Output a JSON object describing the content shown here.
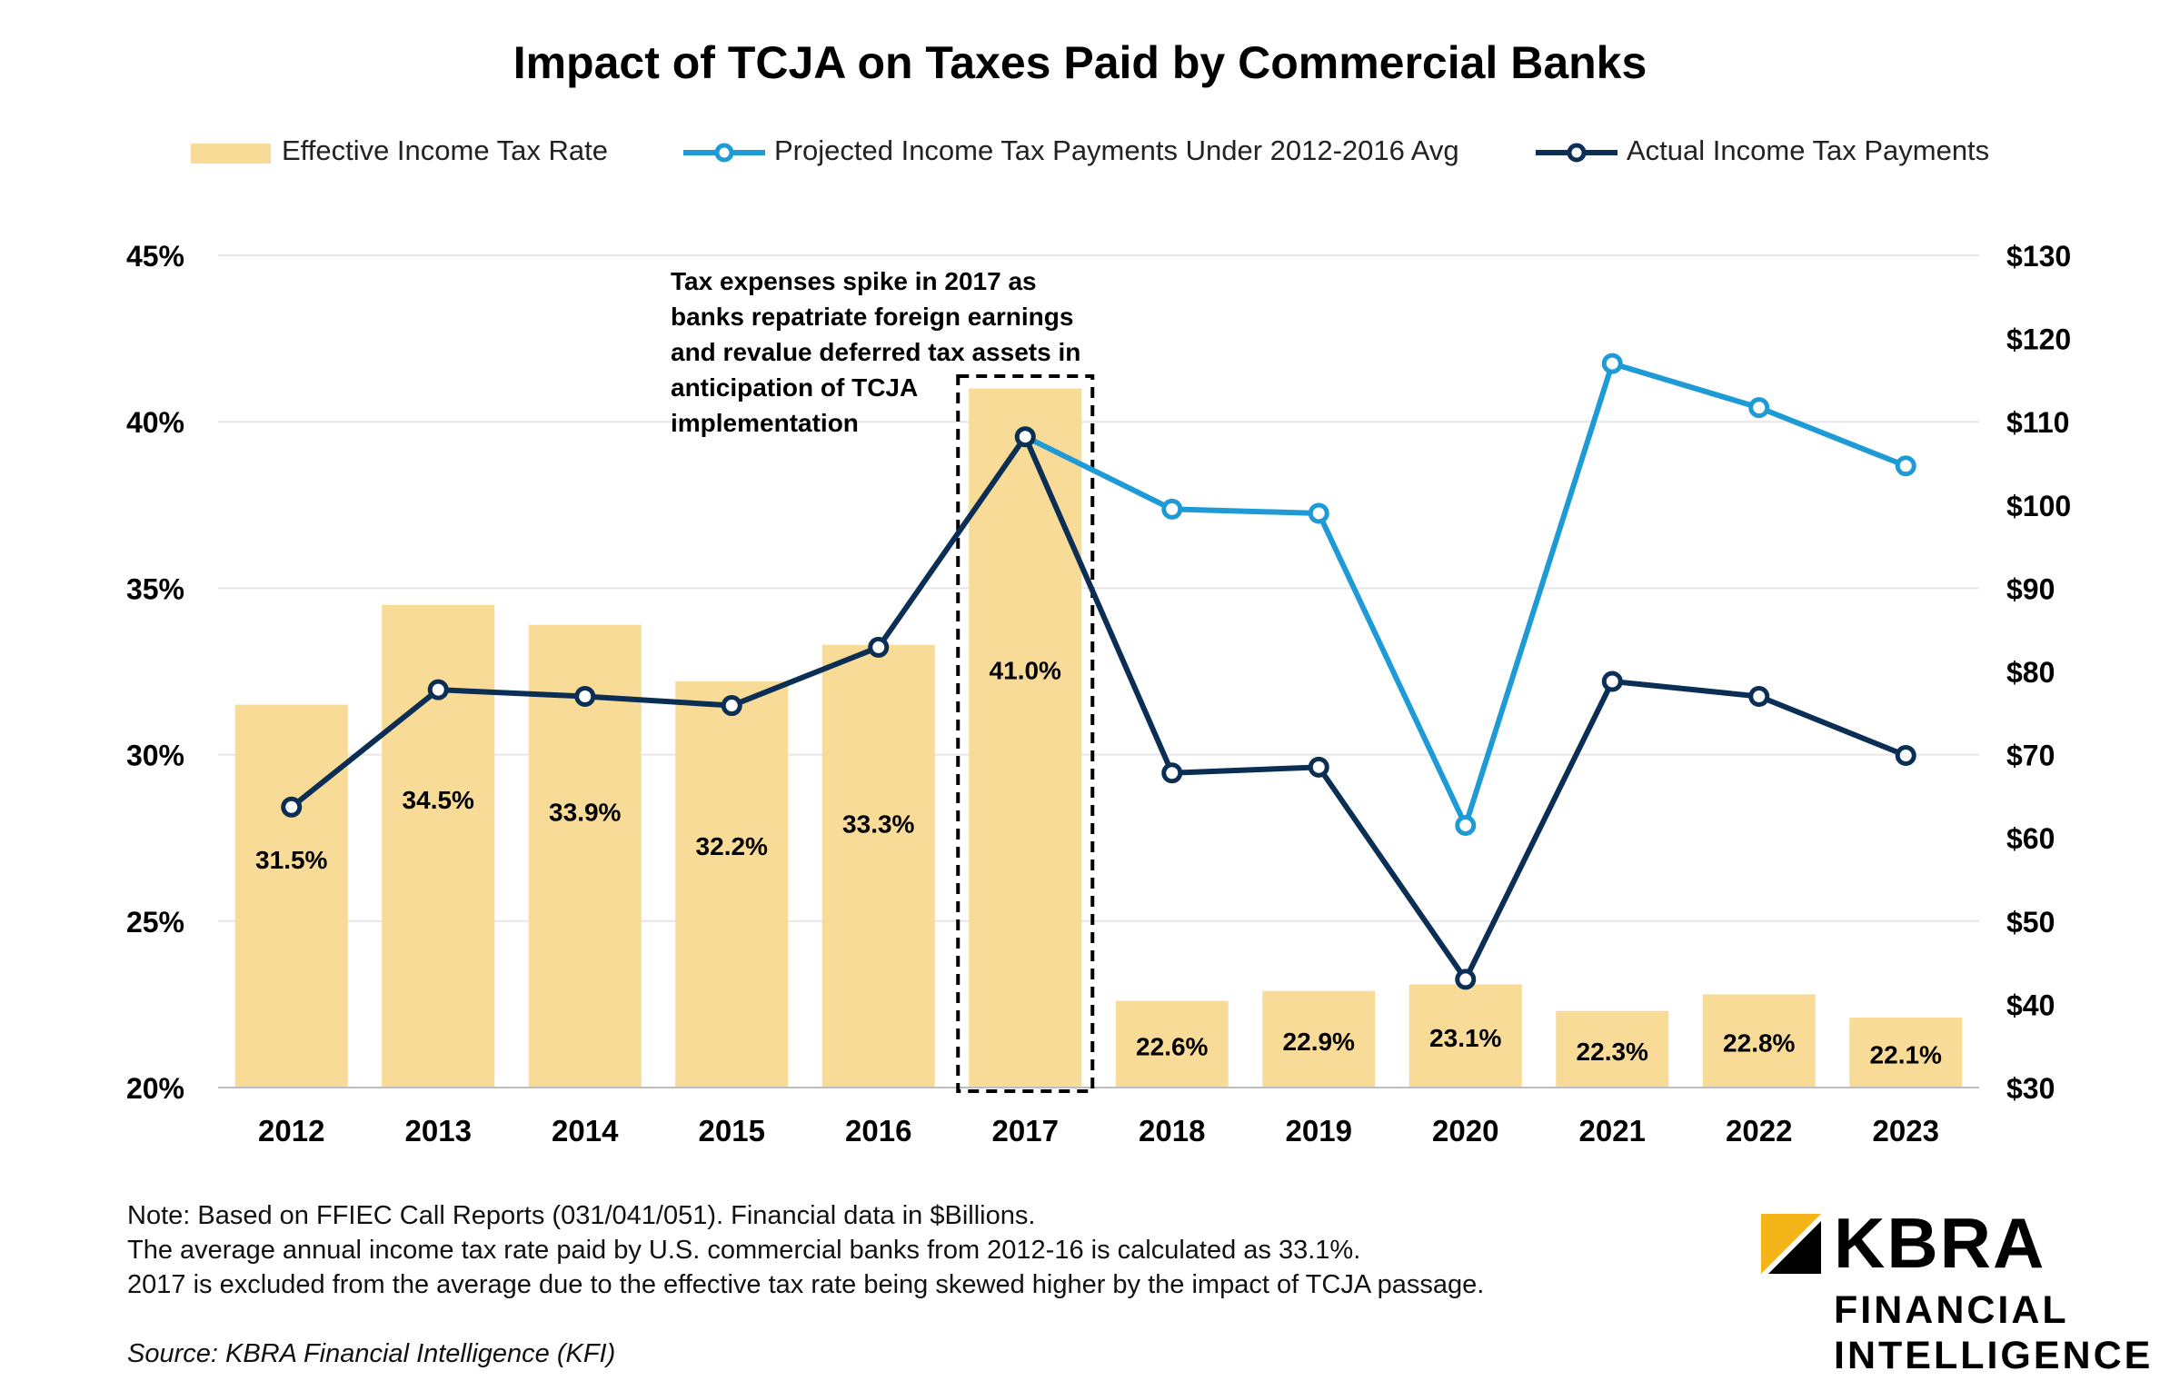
{
  "chart_data": {
    "type": "bar",
    "title": "Impact of TCJA on Taxes Paid by Commercial Banks",
    "categories": [
      "2012",
      "2013",
      "2014",
      "2015",
      "2016",
      "2017",
      "2018",
      "2019",
      "2020",
      "2021",
      "2022",
      "2023"
    ],
    "series": [
      {
        "name": "Effective Income Tax Rate",
        "type": "bar",
        "axis": "left",
        "color": "#F8DB97",
        "values": [
          31.5,
          34.5,
          33.9,
          32.2,
          33.3,
          41.0,
          22.6,
          22.9,
          23.1,
          22.3,
          22.8,
          22.1
        ],
        "labels": [
          "31.5%",
          "34.5%",
          "33.9%",
          "32.2%",
          "33.3%",
          "41.0%",
          "22.6%",
          "22.9%",
          "23.1%",
          "22.3%",
          "22.8%",
          "22.1%"
        ]
      },
      {
        "name": "Projected Income Tax Payments Under 2012-2016 Avg",
        "type": "line",
        "axis": "right",
        "color": "#1E9AD6",
        "values": [
          null,
          null,
          null,
          null,
          null,
          108.2,
          99.5,
          99.0,
          61.5,
          117.0,
          111.7,
          104.7
        ]
      },
      {
        "name": "Actual Income Tax Payments",
        "type": "line",
        "axis": "right",
        "color": "#0B2E55",
        "values": [
          63.7,
          77.8,
          77.0,
          75.9,
          82.9,
          108.2,
          67.8,
          68.5,
          43.0,
          78.8,
          77.0,
          69.9
        ]
      }
    ],
    "y_left": {
      "min": 20,
      "max": 45,
      "ticks": [
        "20%",
        "25%",
        "30%",
        "35%",
        "40%",
        "45%"
      ]
    },
    "y_right": {
      "min": 30,
      "max": 130,
      "ticks": [
        "$30",
        "$40",
        "$50",
        "$60",
        "$70",
        "$80",
        "$90",
        "$100",
        "$110",
        "$120",
        "$130"
      ]
    },
    "grid": true,
    "legend_position": "top",
    "highlight_category": "2017"
  },
  "annotation": {
    "lines": [
      "Tax expenses spike in 2017 as",
      "banks repatriate foreign earnings",
      "and revalue deferred tax assets in",
      "anticipation of TCJA",
      "implementation"
    ]
  },
  "notes": [
    "Note: Based on FFIEC Call Reports (031/041/051). Financial data in $Billions.",
    "The average annual income tax rate paid by U.S. commercial banks from 2012-16 is calculated as 33.1%.",
    "2017 is excluded from the average due to the effective tax rate being skewed higher by the impact of TCJA passage."
  ],
  "source": "Source: KBRA Financial Intelligence (KFI)",
  "logo": {
    "name": "KBRA",
    "line1": "FINANCIAL",
    "line2": "INTELLIGENCE",
    "accent_color": "#F2B417"
  }
}
